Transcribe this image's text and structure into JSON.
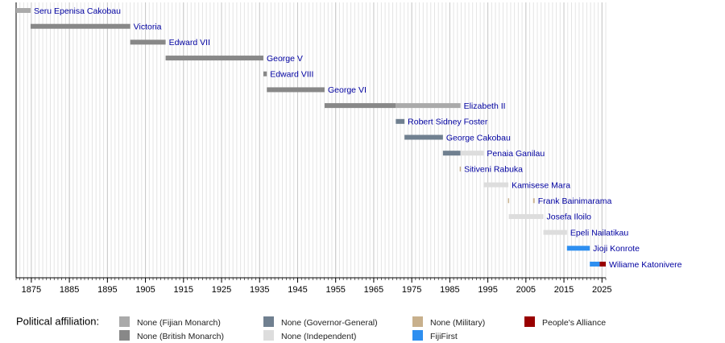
{
  "chart_data": {
    "type": "timeline",
    "xlim": [
      1871,
      2026
    ],
    "xticks": [
      1875,
      1885,
      1895,
      1905,
      1915,
      1925,
      1935,
      1945,
      1955,
      1965,
      1975,
      1985,
      1995,
      2005,
      2015,
      2025
    ],
    "minor_grid": true,
    "legend": {
      "title": "Political affiliation:",
      "items": [
        {
          "name": "None (Fijian Monarch)",
          "color": "#aaaaaa"
        },
        {
          "name": "None (British Monarch)",
          "color": "#888888"
        },
        {
          "name": "None (Governor-General)",
          "color": "#708090"
        },
        {
          "name": "None (Independent)",
          "color": "#dddddd"
        },
        {
          "name": "None (Military)",
          "color": "#c8b08c"
        },
        {
          "name": "FijiFirst",
          "color": "#2e8ff0"
        },
        {
          "name": "People's Alliance",
          "color": "#990000"
        }
      ]
    },
    "rows": [
      {
        "name": "Seru Epenisa Cakobau",
        "segments": [
          {
            "start": 1871,
            "end": 1874.8,
            "party": "None (Fijian Monarch)"
          }
        ]
      },
      {
        "name": "Victoria",
        "segments": [
          {
            "start": 1874.8,
            "end": 1901,
            "party": "None (British Monarch)"
          }
        ]
      },
      {
        "name": "Edward VII",
        "segments": [
          {
            "start": 1901,
            "end": 1910.3,
            "party": "None (British Monarch)"
          }
        ]
      },
      {
        "name": "George V",
        "segments": [
          {
            "start": 1910.3,
            "end": 1936,
            "party": "None (British Monarch)"
          }
        ]
      },
      {
        "name": "Edward VIII",
        "segments": [
          {
            "start": 1936,
            "end": 1936.9,
            "party": "None (British Monarch)"
          }
        ]
      },
      {
        "name": "George VI",
        "segments": [
          {
            "start": 1936.9,
            "end": 1952.1,
            "party": "None (British Monarch)"
          }
        ]
      },
      {
        "name": "Elizabeth II",
        "segments": [
          {
            "start": 1952.1,
            "end": 1970.8,
            "party": "None (British Monarch)"
          },
          {
            "start": 1970.8,
            "end": 1987.8,
            "party": "None (Fijian Monarch)"
          }
        ]
      },
      {
        "name": "Robert Sidney Foster",
        "segments": [
          {
            "start": 1970.8,
            "end": 1973.1,
            "party": "None (Governor-General)"
          }
        ]
      },
      {
        "name": "George Cakobau",
        "segments": [
          {
            "start": 1973.1,
            "end": 1983.2,
            "party": "None (Governor-General)"
          }
        ]
      },
      {
        "name": "Penaia Ganilau",
        "segments": [
          {
            "start": 1983.2,
            "end": 1987.8,
            "party": "None (Governor-General)"
          },
          {
            "start": 1987.8,
            "end": 1993.9,
            "party": "None (Independent)"
          }
        ]
      },
      {
        "name": "Sitiveni Rabuka",
        "segments": [
          {
            "start": 1987.6,
            "end": 1987.9,
            "party": "None (Military)"
          }
        ]
      },
      {
        "name": "Kamisese Mara",
        "segments": [
          {
            "start": 1993.9,
            "end": 2000.4,
            "party": "None (Independent)"
          }
        ]
      },
      {
        "name": "Frank Bainimarama",
        "segments": [
          {
            "start": 2000.3,
            "end": 2000.6,
            "party": "None (Military)"
          },
          {
            "start": 2006.9,
            "end": 2007.3,
            "party": "None (Military)"
          }
        ]
      },
      {
        "name": "Josefa Iloilo",
        "segments": [
          {
            "start": 2000.5,
            "end": 2009.6,
            "party": "None (Independent)"
          }
        ]
      },
      {
        "name": "Epeli Nailatikau",
        "segments": [
          {
            "start": 2009.6,
            "end": 2015.8,
            "party": "None (Independent)"
          }
        ]
      },
      {
        "name": "Jioji Konrote",
        "segments": [
          {
            "start": 2015.8,
            "end": 2021.8,
            "party": "FijiFirst"
          }
        ]
      },
      {
        "name": "Wiliame Katonivere",
        "segments": [
          {
            "start": 2021.8,
            "end": 2024.4,
            "party": "FijiFirst"
          },
          {
            "start": 2024.4,
            "end": 2026,
            "party": "People's Alliance"
          }
        ]
      }
    ]
  }
}
